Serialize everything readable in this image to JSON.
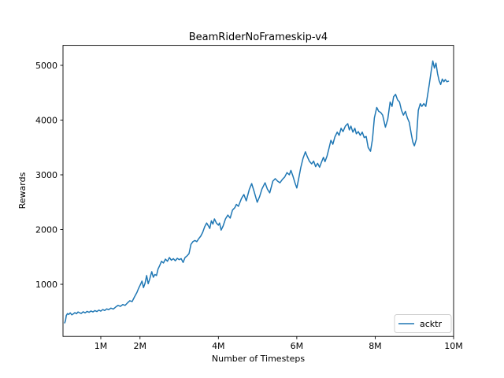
{
  "chart_data": {
    "type": "line",
    "title": "BeamRiderNoFrameskip-v4",
    "xlabel": "Number of Timesteps",
    "ylabel": "Rewards",
    "grid": false,
    "background_color": "#ffffff",
    "frame_color": "#000000",
    "xlim": [
      0.036,
      10.0
    ],
    "ylim": [
      48,
      5365
    ],
    "x_unit": "millions of timesteps",
    "x_ticks": [
      {
        "value": 1,
        "label": "1M"
      },
      {
        "value": 2,
        "label": "2M"
      },
      {
        "value": 4,
        "label": "4M"
      },
      {
        "value": 6,
        "label": "6M"
      },
      {
        "value": 8,
        "label": "8M"
      },
      {
        "value": 10,
        "label": "10M"
      }
    ],
    "y_ticks": [
      {
        "value": 1000,
        "label": "1000"
      },
      {
        "value": 2000,
        "label": "2000"
      },
      {
        "value": 3000,
        "label": "3000"
      },
      {
        "value": 4000,
        "label": "4000"
      },
      {
        "value": 5000,
        "label": "5000"
      }
    ],
    "legend": {
      "position": "lower right",
      "border_color": "#cccccc"
    },
    "series": [
      {
        "name": "acktr",
        "color": "#1f77b4",
        "points": [
          [
            0.08,
            295
          ],
          [
            0.1,
            340
          ],
          [
            0.12,
            430
          ],
          [
            0.15,
            465
          ],
          [
            0.18,
            450
          ],
          [
            0.22,
            478
          ],
          [
            0.26,
            442
          ],
          [
            0.3,
            460
          ],
          [
            0.34,
            482
          ],
          [
            0.38,
            462
          ],
          [
            0.42,
            495
          ],
          [
            0.46,
            480
          ],
          [
            0.5,
            468
          ],
          [
            0.55,
            498
          ],
          [
            0.6,
            478
          ],
          [
            0.65,
            505
          ],
          [
            0.7,
            488
          ],
          [
            0.75,
            512
          ],
          [
            0.8,
            495
          ],
          [
            0.85,
            520
          ],
          [
            0.9,
            502
          ],
          [
            0.95,
            528
          ],
          [
            1.0,
            510
          ],
          [
            1.05,
            538
          ],
          [
            1.1,
            522
          ],
          [
            1.15,
            552
          ],
          [
            1.2,
            535
          ],
          [
            1.26,
            565
          ],
          [
            1.32,
            548
          ],
          [
            1.38,
            585
          ],
          [
            1.44,
            615
          ],
          [
            1.5,
            598
          ],
          [
            1.56,
            630
          ],
          [
            1.62,
            615
          ],
          [
            1.68,
            660
          ],
          [
            1.74,
            700
          ],
          [
            1.8,
            685
          ],
          [
            1.86,
            770
          ],
          [
            1.92,
            850
          ],
          [
            1.96,
            920
          ],
          [
            2.0,
            980
          ],
          [
            2.05,
            1060
          ],
          [
            2.09,
            940
          ],
          [
            2.13,
            1020
          ],
          [
            2.17,
            1160
          ],
          [
            2.21,
            1010
          ],
          [
            2.25,
            1100
          ],
          [
            2.3,
            1230
          ],
          [
            2.34,
            1130
          ],
          [
            2.38,
            1180
          ],
          [
            2.42,
            1160
          ],
          [
            2.46,
            1280
          ],
          [
            2.5,
            1340
          ],
          [
            2.55,
            1420
          ],
          [
            2.6,
            1390
          ],
          [
            2.65,
            1460
          ],
          [
            2.7,
            1420
          ],
          [
            2.75,
            1490
          ],
          [
            2.8,
            1440
          ],
          [
            2.85,
            1470
          ],
          [
            2.9,
            1430
          ],
          [
            2.95,
            1475
          ],
          [
            3.0,
            1450
          ],
          [
            3.05,
            1470
          ],
          [
            3.1,
            1400
          ],
          [
            3.15,
            1490
          ],
          [
            3.2,
            1520
          ],
          [
            3.25,
            1560
          ],
          [
            3.3,
            1730
          ],
          [
            3.35,
            1780
          ],
          [
            3.4,
            1800
          ],
          [
            3.45,
            1780
          ],
          [
            3.5,
            1835
          ],
          [
            3.55,
            1880
          ],
          [
            3.6,
            1950
          ],
          [
            3.65,
            2050
          ],
          [
            3.7,
            2120
          ],
          [
            3.75,
            2060
          ],
          [
            3.78,
            2020
          ],
          [
            3.82,
            2160
          ],
          [
            3.86,
            2100
          ],
          [
            3.9,
            2195
          ],
          [
            3.95,
            2120
          ],
          [
            4.0,
            2080
          ],
          [
            4.03,
            2120
          ],
          [
            4.07,
            1990
          ],
          [
            4.12,
            2065
          ],
          [
            4.18,
            2195
          ],
          [
            4.24,
            2265
          ],
          [
            4.3,
            2210
          ],
          [
            4.36,
            2355
          ],
          [
            4.42,
            2400
          ],
          [
            4.46,
            2460
          ],
          [
            4.51,
            2425
          ],
          [
            4.59,
            2570
          ],
          [
            4.65,
            2640
          ],
          [
            4.71,
            2525
          ],
          [
            4.79,
            2740
          ],
          [
            4.85,
            2840
          ],
          [
            4.91,
            2700
          ],
          [
            4.99,
            2500
          ],
          [
            5.05,
            2600
          ],
          [
            5.11,
            2740
          ],
          [
            5.19,
            2855
          ],
          [
            5.25,
            2740
          ],
          [
            5.31,
            2670
          ],
          [
            5.39,
            2885
          ],
          [
            5.45,
            2930
          ],
          [
            5.51,
            2885
          ],
          [
            5.57,
            2855
          ],
          [
            5.63,
            2915
          ],
          [
            5.69,
            2960
          ],
          [
            5.75,
            3040
          ],
          [
            5.81,
            3000
          ],
          [
            5.85,
            3080
          ],
          [
            5.9,
            2980
          ],
          [
            5.95,
            2860
          ],
          [
            6.0,
            2760
          ],
          [
            6.05,
            2940
          ],
          [
            6.1,
            3130
          ],
          [
            6.16,
            3300
          ],
          [
            6.22,
            3420
          ],
          [
            6.27,
            3330
          ],
          [
            6.32,
            3250
          ],
          [
            6.38,
            3200
          ],
          [
            6.43,
            3250
          ],
          [
            6.48,
            3150
          ],
          [
            6.53,
            3210
          ],
          [
            6.58,
            3140
          ],
          [
            6.63,
            3230
          ],
          [
            6.68,
            3320
          ],
          [
            6.72,
            3240
          ],
          [
            6.77,
            3340
          ],
          [
            6.82,
            3480
          ],
          [
            6.87,
            3630
          ],
          [
            6.92,
            3560
          ],
          [
            6.97,
            3690
          ],
          [
            7.03,
            3780
          ],
          [
            7.08,
            3720
          ],
          [
            7.13,
            3850
          ],
          [
            7.18,
            3790
          ],
          [
            7.24,
            3890
          ],
          [
            7.3,
            3935
          ],
          [
            7.34,
            3820
          ],
          [
            7.38,
            3890
          ],
          [
            7.43,
            3780
          ],
          [
            7.48,
            3850
          ],
          [
            7.52,
            3750
          ],
          [
            7.57,
            3790
          ],
          [
            7.62,
            3720
          ],
          [
            7.67,
            3780
          ],
          [
            7.72,
            3680
          ],
          [
            7.77,
            3700
          ],
          [
            7.82,
            3500
          ],
          [
            7.88,
            3430
          ],
          [
            7.93,
            3650
          ],
          [
            7.98,
            4040
          ],
          [
            8.04,
            4230
          ],
          [
            8.09,
            4160
          ],
          [
            8.14,
            4140
          ],
          [
            8.19,
            4090
          ],
          [
            8.26,
            3870
          ],
          [
            8.32,
            4015
          ],
          [
            8.38,
            4330
          ],
          [
            8.43,
            4250
          ],
          [
            8.47,
            4425
          ],
          [
            8.52,
            4470
          ],
          [
            8.57,
            4370
          ],
          [
            8.62,
            4330
          ],
          [
            8.67,
            4180
          ],
          [
            8.72,
            4090
          ],
          [
            8.77,
            4160
          ],
          [
            8.82,
            4040
          ],
          [
            8.87,
            3960
          ],
          [
            8.92,
            3750
          ],
          [
            8.96,
            3600
          ],
          [
            9.0,
            3530
          ],
          [
            9.05,
            3650
          ],
          [
            9.1,
            4180
          ],
          [
            9.15,
            4300
          ],
          [
            9.19,
            4250
          ],
          [
            9.24,
            4300
          ],
          [
            9.29,
            4250
          ],
          [
            9.33,
            4420
          ],
          [
            9.38,
            4650
          ],
          [
            9.43,
            4900
          ],
          [
            9.47,
            5080
          ],
          [
            9.51,
            4950
          ],
          [
            9.55,
            5040
          ],
          [
            9.59,
            4850
          ],
          [
            9.63,
            4720
          ],
          [
            9.67,
            4650
          ],
          [
            9.71,
            4750
          ],
          [
            9.75,
            4700
          ],
          [
            9.79,
            4740
          ],
          [
            9.83,
            4700
          ],
          [
            9.87,
            4710
          ]
        ]
      }
    ]
  }
}
